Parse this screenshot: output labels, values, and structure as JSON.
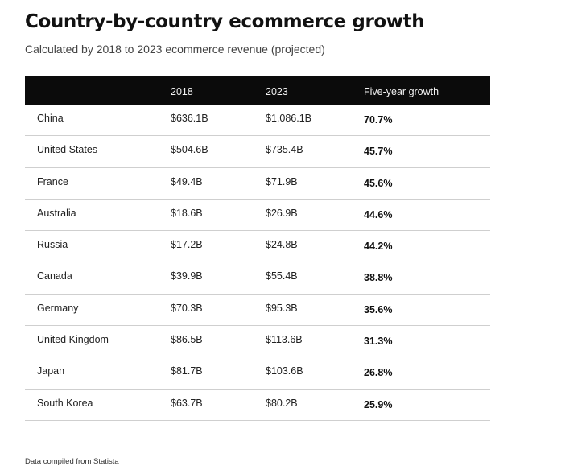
{
  "title": "Country-by-country ecommerce growth",
  "subtitle": "Calculated by 2018 to 2023 ecommerce revenue (projected)",
  "table": {
    "headers": [
      "",
      "2018",
      "2023",
      "Five-year growth"
    ],
    "rows": [
      {
        "country": "China",
        "y2018": "$636.1B",
        "y2023": "$1,086.1B",
        "growth": "70.7%"
      },
      {
        "country": "United States",
        "y2018": "$504.6B",
        "y2023": "$735.4B",
        "growth": "45.7%"
      },
      {
        "country": "France",
        "y2018": "$49.4B",
        "y2023": "$71.9B",
        "growth": "45.6%"
      },
      {
        "country": "Australia",
        "y2018": "$18.6B",
        "y2023": "$26.9B",
        "growth": "44.6%"
      },
      {
        "country": "Russia",
        "y2018": "$17.2B",
        "y2023": "$24.8B",
        "growth": "44.2%"
      },
      {
        "country": "Canada",
        "y2018": "$39.9B",
        "y2023": "$55.4B",
        "growth": "38.8%"
      },
      {
        "country": "Germany",
        "y2018": "$70.3B",
        "y2023": "$95.3B",
        "growth": "35.6%"
      },
      {
        "country": "United Kingdom",
        "y2018": "$86.5B",
        "y2023": "$113.6B",
        "growth": "31.3%"
      },
      {
        "country": "Japan",
        "y2018": "$81.7B",
        "y2023": "$103.6B",
        "growth": "26.8%"
      },
      {
        "country": "South Korea",
        "y2018": "$63.7B",
        "y2023": "$80.2B",
        "growth": "25.9%"
      }
    ]
  },
  "footer": "Data compiled from Statista"
}
